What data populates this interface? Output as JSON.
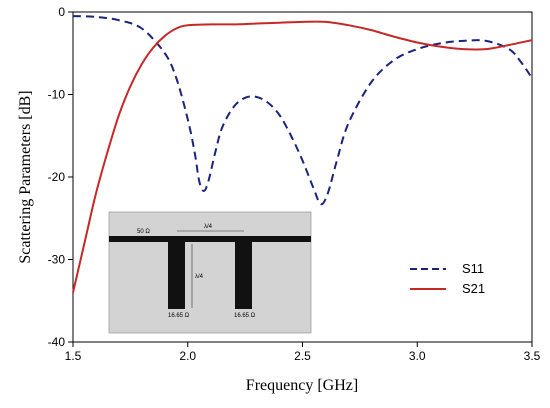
{
  "chart_data": {
    "type": "line",
    "xlabel": "Frequency [GHz]",
    "ylabel": "Scattering Parameters [dB]",
    "xlim": [
      1.5,
      3.5
    ],
    "ylim": [
      -40,
      0
    ],
    "xticks": [
      "1.5",
      "2.0",
      "2.5",
      "3.0",
      "3.5"
    ],
    "yticks": [
      "0",
      "-10",
      "-20",
      "-30",
      "-40"
    ],
    "grid": false,
    "legend_position": "bottom-right",
    "series": [
      {
        "name": "S11",
        "color": "#1a237e",
        "dash": "dashed",
        "points": [
          [
            1.5,
            -0.5
          ],
          [
            1.6,
            -0.6
          ],
          [
            1.7,
            -1.0
          ],
          [
            1.8,
            -2.0
          ],
          [
            1.9,
            -5.0
          ],
          [
            1.95,
            -8.0
          ],
          [
            2.0,
            -13.0
          ],
          [
            2.03,
            -17.0
          ],
          [
            2.05,
            -20.5
          ],
          [
            2.07,
            -21.7
          ],
          [
            2.09,
            -20.5
          ],
          [
            2.12,
            -17.0
          ],
          [
            2.15,
            -14.0
          ],
          [
            2.2,
            -11.5
          ],
          [
            2.25,
            -10.4
          ],
          [
            2.3,
            -10.3
          ],
          [
            2.35,
            -11.0
          ],
          [
            2.4,
            -12.5
          ],
          [
            2.45,
            -15.0
          ],
          [
            2.5,
            -18.0
          ],
          [
            2.55,
            -21.5
          ],
          [
            2.58,
            -23.3
          ],
          [
            2.61,
            -22.0
          ],
          [
            2.65,
            -18.0
          ],
          [
            2.7,
            -13.5
          ],
          [
            2.8,
            -8.5
          ],
          [
            2.9,
            -5.8
          ],
          [
            3.0,
            -4.5
          ],
          [
            3.1,
            -3.8
          ],
          [
            3.2,
            -3.5
          ],
          [
            3.3,
            -3.5
          ],
          [
            3.4,
            -4.5
          ],
          [
            3.45,
            -6.0
          ],
          [
            3.5,
            -8.0
          ]
        ]
      },
      {
        "name": "S21",
        "color": "#c62828",
        "dash": "solid",
        "points": [
          [
            1.5,
            -34.0
          ],
          [
            1.55,
            -28.0
          ],
          [
            1.6,
            -22.0
          ],
          [
            1.65,
            -17.0
          ],
          [
            1.7,
            -12.5
          ],
          [
            1.75,
            -9.0
          ],
          [
            1.8,
            -6.3
          ],
          [
            1.85,
            -4.3
          ],
          [
            1.9,
            -2.9
          ],
          [
            1.95,
            -2.0
          ],
          [
            2.0,
            -1.6
          ],
          [
            2.1,
            -1.5
          ],
          [
            2.2,
            -1.5
          ],
          [
            2.3,
            -1.4
          ],
          [
            2.4,
            -1.3
          ],
          [
            2.5,
            -1.2
          ],
          [
            2.6,
            -1.2
          ],
          [
            2.7,
            -1.6
          ],
          [
            2.8,
            -2.2
          ],
          [
            2.9,
            -3.0
          ],
          [
            3.0,
            -3.7
          ],
          [
            3.1,
            -4.2
          ],
          [
            3.2,
            -4.5
          ],
          [
            3.3,
            -4.5
          ],
          [
            3.4,
            -4.0
          ],
          [
            3.5,
            -3.4
          ]
        ]
      }
    ]
  },
  "inset": {
    "label_50": "50 Ω",
    "label_quarter_top": "λ/4",
    "label_quarter_vertical": "λ/4",
    "label_stub_left": "16.65 Ω",
    "label_stub_right": "16.65 Ω"
  }
}
